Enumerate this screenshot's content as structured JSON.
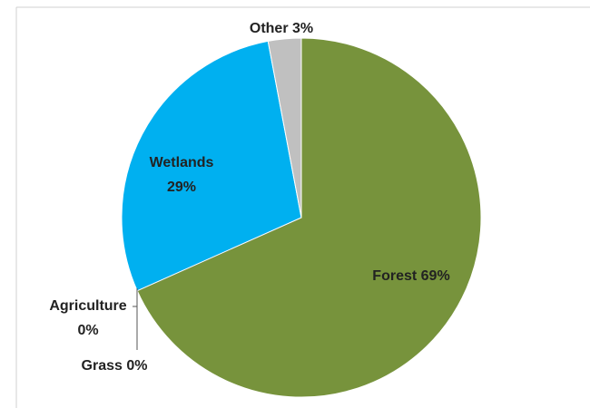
{
  "chart_data": {
    "type": "pie",
    "categories": [
      "Forest",
      "Agriculture",
      "Grass",
      "Wetlands",
      "Other"
    ],
    "values": [
      69,
      0,
      0,
      29,
      3
    ],
    "value_labels": [
      "69%",
      "0%",
      "0%",
      "29%",
      "3%"
    ],
    "colors": [
      "#77933c",
      "#f79646",
      "#ffff66",
      "#00b0f0",
      "#c0c0c0"
    ]
  }
}
